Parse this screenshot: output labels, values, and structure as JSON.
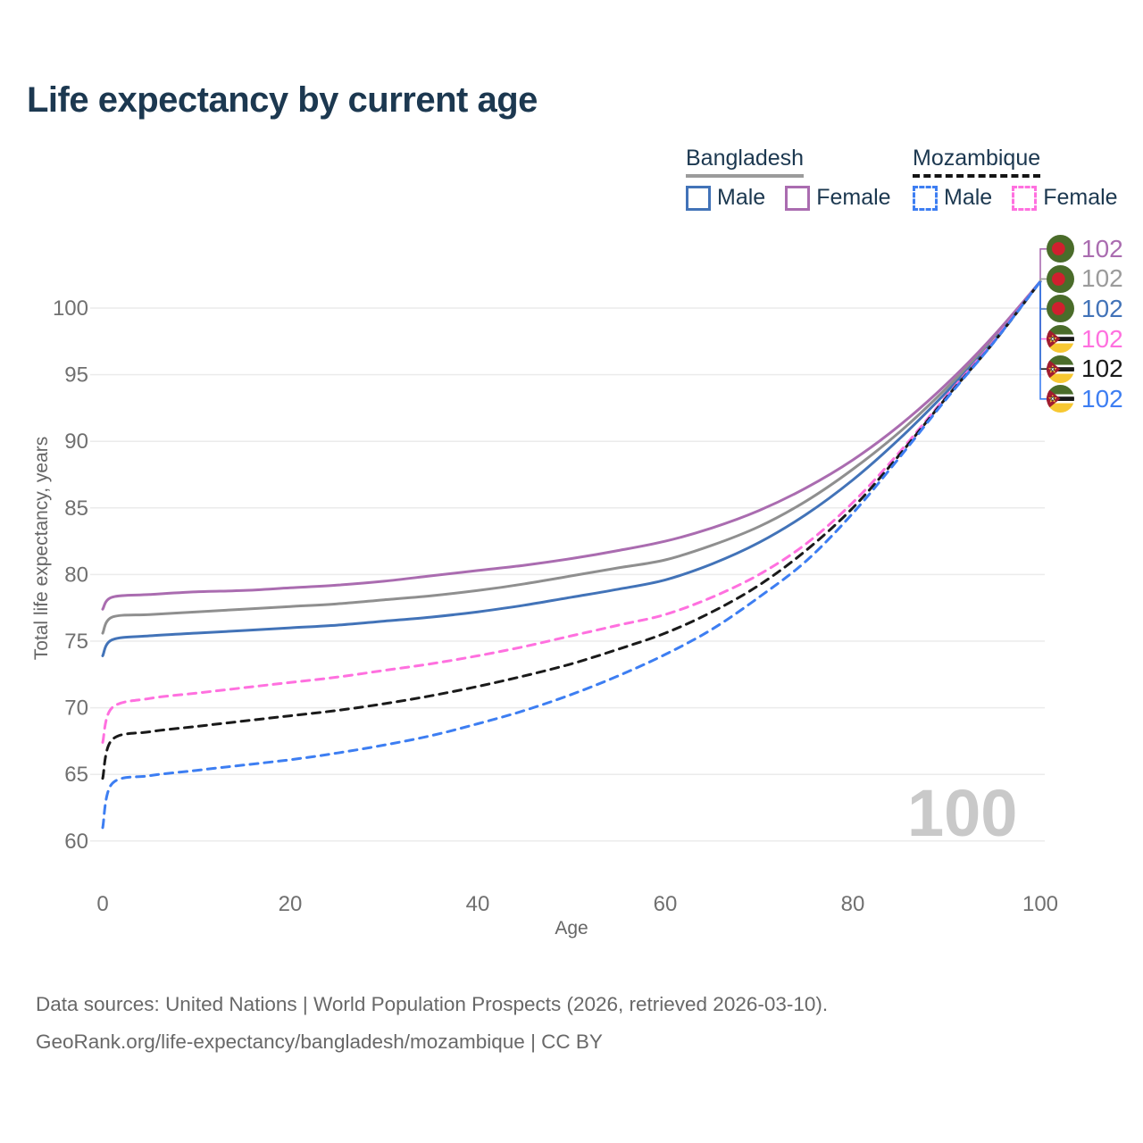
{
  "title": "Life expectancy by current age",
  "legend": {
    "bangladesh": {
      "name": "Bangladesh",
      "male": "Male",
      "female": "Female"
    },
    "mozambique": {
      "name": "Mozambique",
      "male": "Male",
      "female": "Female"
    }
  },
  "axes": {
    "y_title": "Total life expectancy, years",
    "x_title": "Age",
    "y_ticks": [
      100,
      95,
      90,
      85,
      80,
      75,
      70,
      65,
      60
    ],
    "x_ticks": [
      0,
      20,
      40,
      60,
      80,
      100
    ]
  },
  "watermark": "100",
  "end_labels": [
    {
      "series": "Bangladesh Female",
      "flag": "bangladesh",
      "value": "102",
      "color": "#aa6cb0"
    },
    {
      "series": "Bangladesh Both sexes",
      "flag": "bangladesh",
      "value": "102",
      "color": "#9b9b9b"
    },
    {
      "series": "Bangladesh Male",
      "flag": "bangladesh",
      "value": "102",
      "color": "#4273b8"
    },
    {
      "series": "Mozambique Female",
      "flag": "mozambique",
      "value": "102",
      "color": "#ff70df"
    },
    {
      "series": "Mozambique Both sexes",
      "flag": "mozambique",
      "value": "102",
      "color": "#1a1a1a"
    },
    {
      "series": "Mozambique Male",
      "flag": "mozambique",
      "value": "102",
      "color": "#3d7ef2"
    }
  ],
  "footer": {
    "line1": "Data sources: United Nations | World Population Prospects (2026, retrieved 2026-03-10).",
    "line2": "GeoRank.org/life-expectancy/bangladesh/mozambique | CC BY"
  },
  "colors": {
    "title": "#1c3850",
    "legend_text": "#1c3850",
    "bangladesh_underline": "#9b9b9b",
    "mozambique_underline": "#141414",
    "grid": "#ebebeb",
    "tick_text": "#707070",
    "axis_title_text": "#666666",
    "footer_text": "#686868",
    "watermark_text": "#c9c9c9"
  },
  "chart_data": {
    "type": "line",
    "title": "Life expectancy by current age",
    "xlabel": "Age",
    "ylabel": "Total life expectancy, years",
    "xlim": [
      0,
      100
    ],
    "ylim": [
      60,
      102.5
    ],
    "grid": "horizontal-only",
    "legend_position": "top-right",
    "end_value_label": "102",
    "x": [
      0,
      1,
      5,
      10,
      15,
      20,
      25,
      30,
      35,
      40,
      45,
      50,
      55,
      60,
      65,
      70,
      75,
      80,
      85,
      90,
      95,
      100
    ],
    "series": [
      {
        "name": "Bangladesh Female",
        "country": "Bangladesh",
        "sex": "Female",
        "style": "solid",
        "color": "#aa6cb0",
        "values": [
          77.4,
          78.3,
          78.5,
          78.7,
          78.8,
          79.0,
          79.2,
          79.5,
          79.9,
          80.3,
          80.7,
          81.2,
          81.8,
          82.5,
          83.5,
          84.8,
          86.5,
          88.6,
          91.2,
          94.3,
          97.9,
          102
        ]
      },
      {
        "name": "Bangladesh Both sexes",
        "country": "Bangladesh",
        "sex": "Both",
        "style": "solid",
        "color": "#8f8f8f",
        "values": [
          75.6,
          76.8,
          77.0,
          77.2,
          77.4,
          77.6,
          77.8,
          78.1,
          78.4,
          78.8,
          79.3,
          79.9,
          80.5,
          81.1,
          82.2,
          83.6,
          85.5,
          87.9,
          90.7,
          94.0,
          97.7,
          102
        ]
      },
      {
        "name": "Bangladesh Male",
        "country": "Bangladesh",
        "sex": "Male",
        "style": "solid",
        "color": "#4273b8",
        "values": [
          73.9,
          75.1,
          75.4,
          75.6,
          75.8,
          76.0,
          76.2,
          76.5,
          76.8,
          77.2,
          77.7,
          78.3,
          78.9,
          79.6,
          80.8,
          82.4,
          84.5,
          87.1,
          90.2,
          93.7,
          97.5,
          102
        ]
      },
      {
        "name": "Mozambique Female",
        "country": "Mozambique",
        "sex": "Female",
        "style": "dashed",
        "color": "#ff70df",
        "values": [
          67.4,
          70.0,
          70.7,
          71.1,
          71.5,
          71.9,
          72.3,
          72.8,
          73.3,
          73.9,
          74.6,
          75.4,
          76.2,
          77.0,
          78.3,
          80.0,
          82.3,
          85.4,
          89.2,
          93.4,
          97.5,
          102
        ]
      },
      {
        "name": "Mozambique Both sexes",
        "country": "Mozambique",
        "sex": "Both",
        "style": "dashed",
        "color": "#1a1a1a",
        "values": [
          64.7,
          67.6,
          68.2,
          68.6,
          69.0,
          69.4,
          69.8,
          70.3,
          70.9,
          71.6,
          72.4,
          73.3,
          74.4,
          75.6,
          77.2,
          79.2,
          81.8,
          85.0,
          89.0,
          93.3,
          97.4,
          102
        ]
      },
      {
        "name": "Mozambique Male",
        "country": "Mozambique",
        "sex": "Male",
        "style": "dashed",
        "color": "#3d7ef2",
        "values": [
          61.0,
          64.3,
          64.9,
          65.3,
          65.7,
          66.1,
          66.6,
          67.2,
          67.9,
          68.8,
          69.8,
          71.0,
          72.4,
          74.0,
          75.9,
          78.3,
          81.0,
          84.6,
          88.8,
          93.2,
          97.4,
          102
        ]
      }
    ]
  }
}
